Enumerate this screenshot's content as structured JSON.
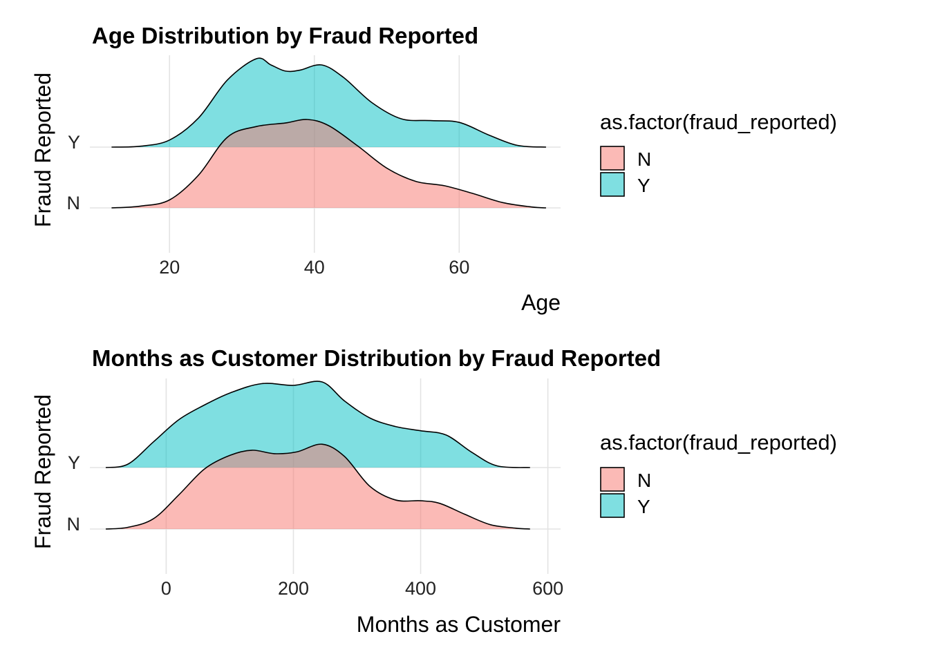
{
  "chart_data": [
    {
      "type": "area",
      "subtype": "ridgeline-density",
      "title": "Age Distribution by Fraud Reported",
      "xlabel": "Age",
      "ylabel": "Fraud Reported",
      "xlim": [
        9,
        74
      ],
      "xticks": [
        20,
        40,
        60
      ],
      "categories": [
        "N",
        "Y"
      ],
      "grid": true,
      "legend": {
        "title": "as.factor(fraud_reported)",
        "position": "right",
        "entries": [
          {
            "label": "N",
            "color": "#F8766D"
          },
          {
            "label": "Y",
            "color": "#00BFC4"
          }
        ]
      },
      "series": [
        {
          "name": "N",
          "category": "N",
          "color": "#F8766D",
          "x": [
            12,
            16,
            20,
            24,
            28,
            32,
            36,
            39,
            42,
            46,
            50,
            54,
            58,
            62,
            66,
            70,
            72
          ],
          "y": [
            0.0,
            0.02,
            0.09,
            0.37,
            0.8,
            0.92,
            0.96,
            1.0,
            0.93,
            0.7,
            0.45,
            0.3,
            0.25,
            0.16,
            0.06,
            0.01,
            0.0
          ]
        },
        {
          "name": "Y",
          "category": "Y",
          "color": "#00BFC4",
          "x": [
            12,
            16,
            20,
            24,
            28,
            32,
            34,
            36,
            38,
            41,
            44,
            48,
            52,
            56,
            60,
            64,
            68,
            72
          ],
          "y": [
            0.0,
            0.01,
            0.08,
            0.33,
            0.76,
            1.0,
            0.93,
            0.86,
            0.87,
            0.93,
            0.79,
            0.5,
            0.32,
            0.3,
            0.28,
            0.14,
            0.02,
            0.0
          ]
        }
      ]
    },
    {
      "type": "area",
      "subtype": "ridgeline-density",
      "title": "Months as Customer Distribution by Fraud Reported",
      "xlabel": "Months as Customer",
      "ylabel": "Fraud Reported",
      "xlim": [
        -120,
        620
      ],
      "xticks": [
        0,
        200,
        400,
        600
      ],
      "categories": [
        "N",
        "Y"
      ],
      "grid": true,
      "legend": {
        "title": "as.factor(fraud_reported)",
        "position": "right",
        "entries": [
          {
            "label": "N",
            "color": "#F8766D"
          },
          {
            "label": "Y",
            "color": "#00BFC4"
          }
        ]
      },
      "series": [
        {
          "name": "N",
          "category": "N",
          "color": "#F8766D",
          "x": [
            -95,
            -60,
            -20,
            20,
            60,
            100,
            135,
            170,
            205,
            245,
            280,
            320,
            360,
            400,
            430,
            470,
            510,
            550,
            572
          ],
          "y": [
            0.0,
            0.02,
            0.12,
            0.4,
            0.7,
            0.86,
            0.92,
            0.88,
            0.9,
            0.99,
            0.85,
            0.5,
            0.34,
            0.33,
            0.3,
            0.17,
            0.05,
            0.01,
            0.0
          ]
        },
        {
          "name": "Y",
          "category": "Y",
          "color": "#00BFC4",
          "x": [
            -95,
            -60,
            -20,
            20,
            60,
            100,
            150,
            200,
            245,
            280,
            320,
            360,
            400,
            440,
            480,
            520,
            572
          ],
          "y": [
            0.0,
            0.04,
            0.3,
            0.56,
            0.73,
            0.87,
            0.98,
            0.96,
            1.0,
            0.78,
            0.58,
            0.48,
            0.43,
            0.38,
            0.18,
            0.02,
            0.0
          ]
        }
      ]
    }
  ]
}
